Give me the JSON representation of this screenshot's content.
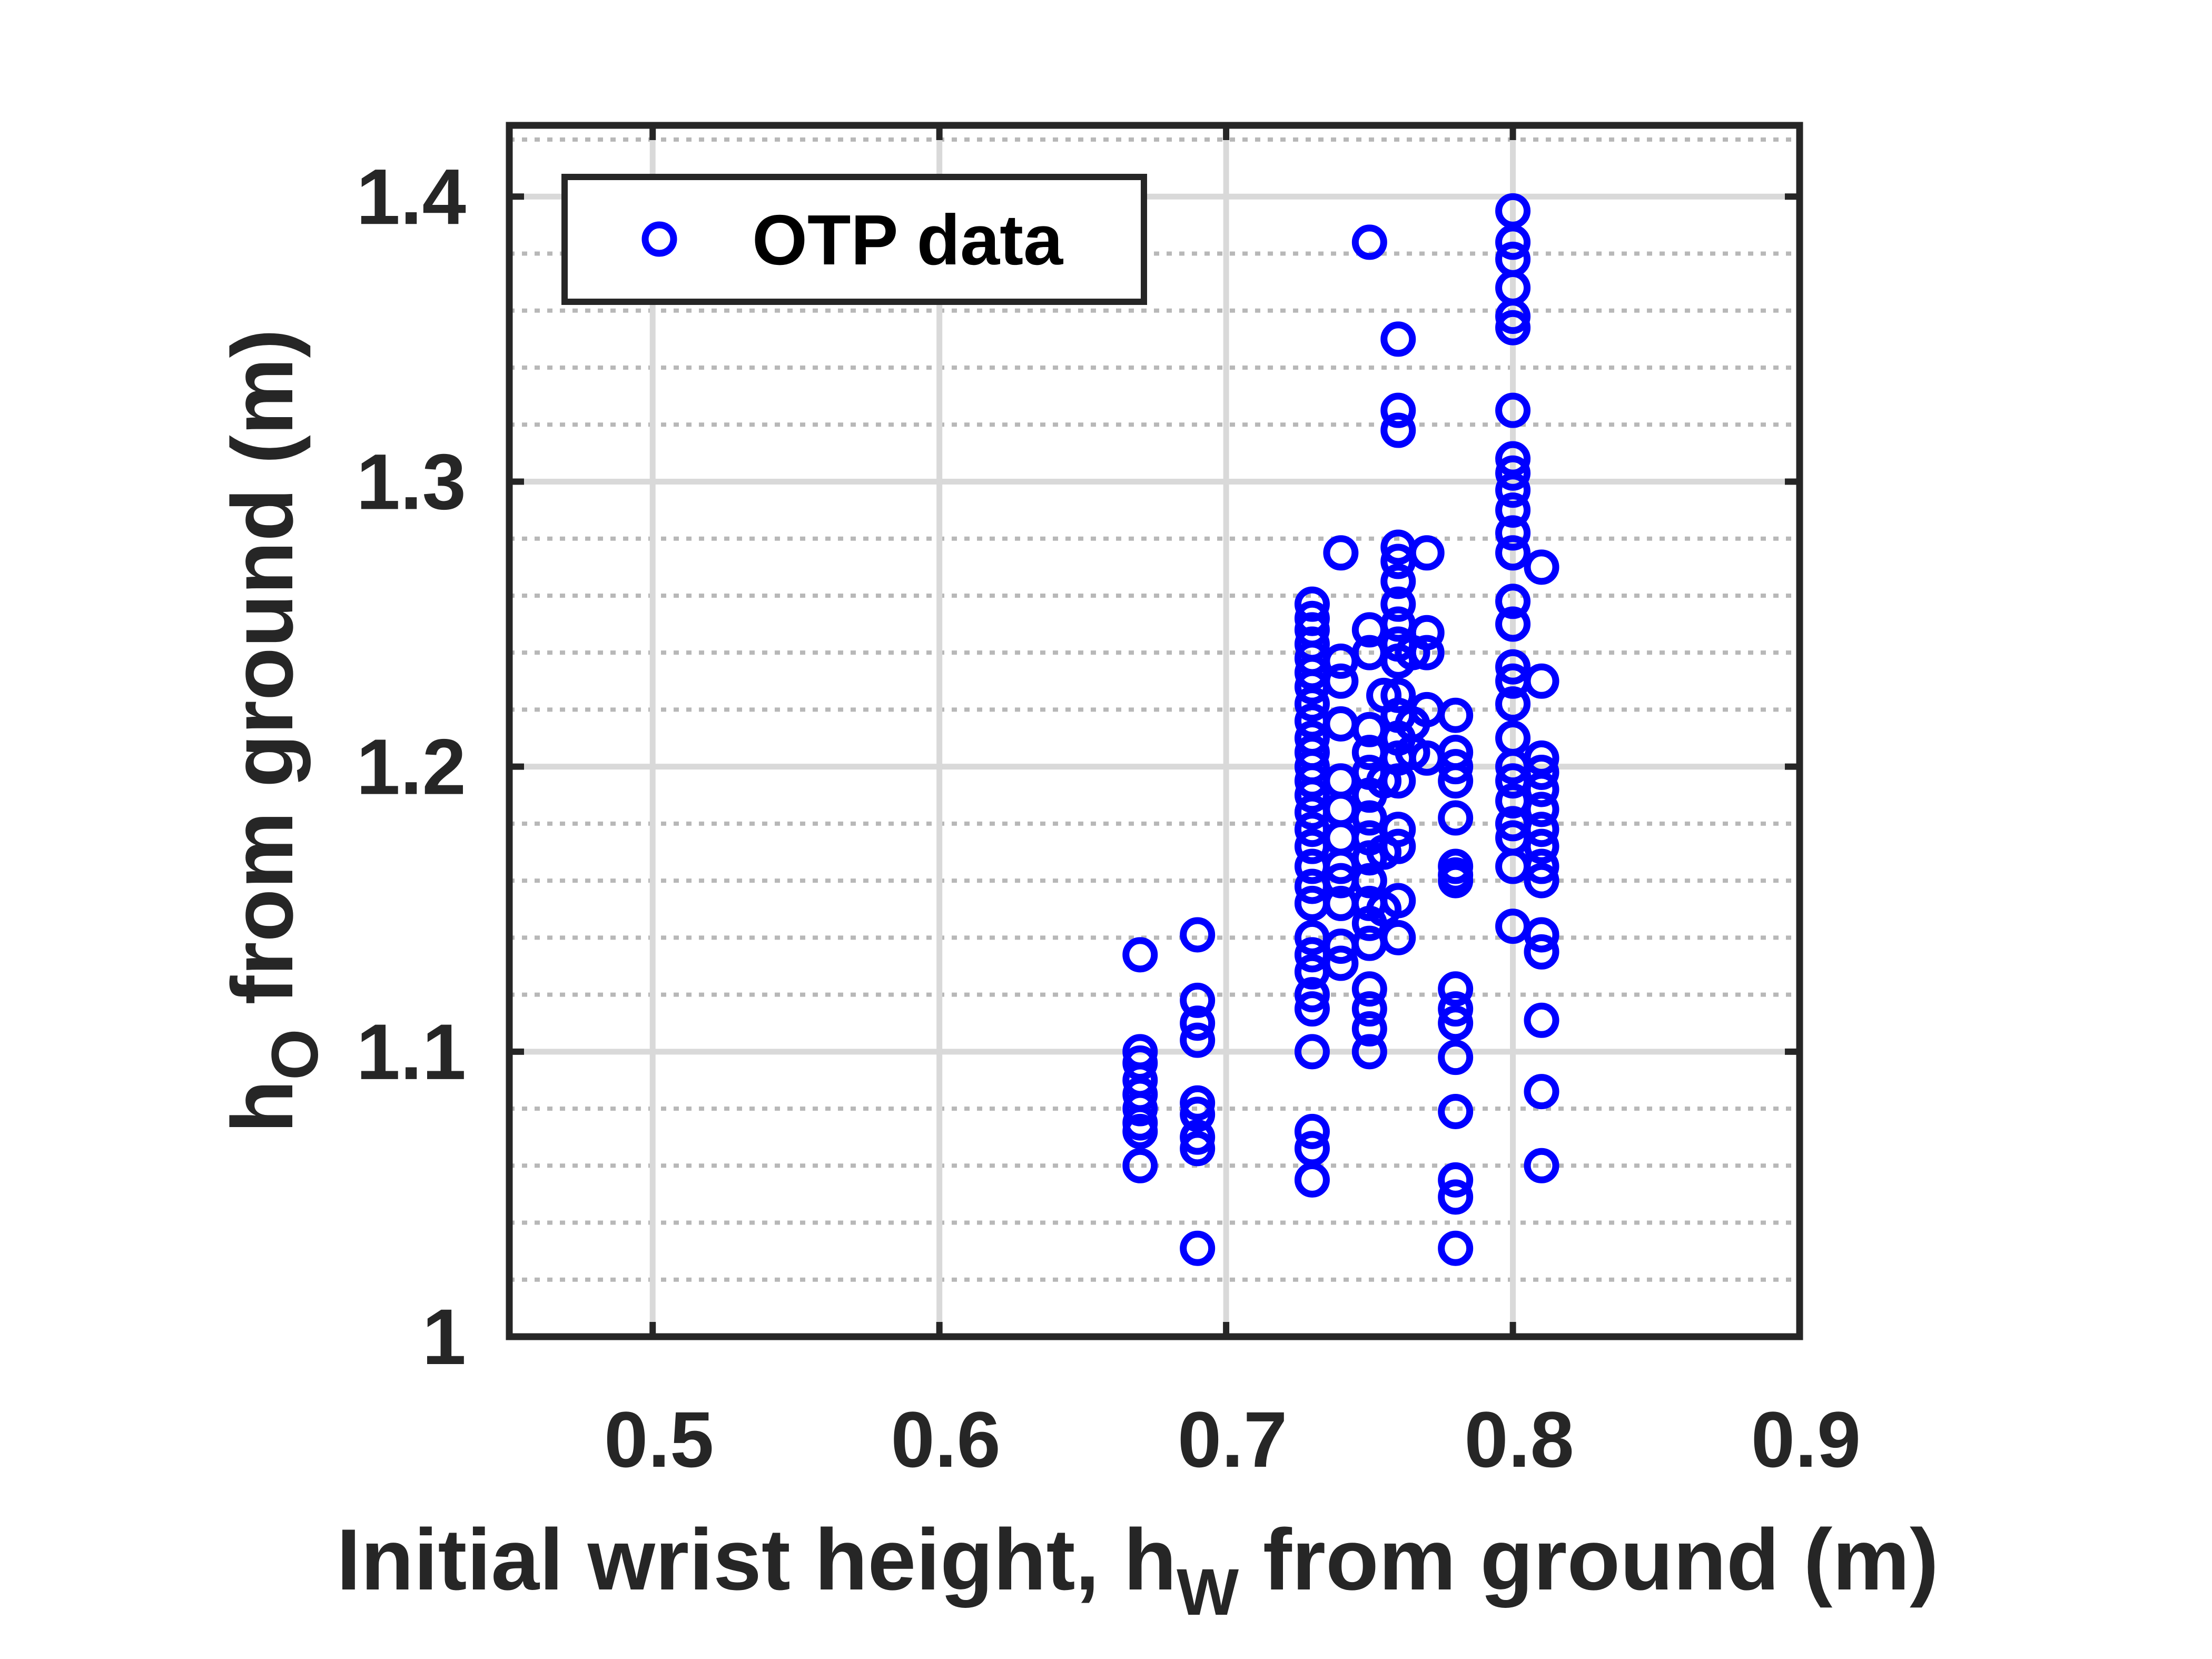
{
  "chart_data": {
    "type": "scatter",
    "xlabel": {
      "main": "Initial wrist height, h",
      "sub": "W",
      "rest": " from ground (m)"
    },
    "ylabel": {
      "main": "h",
      "sub": "O",
      "rest": " from ground (m)"
    },
    "xlim": [
      0.45,
      0.9
    ],
    "ylim": [
      1.0,
      1.425
    ],
    "xticks": [
      "0.5",
      "0.6",
      "0.7",
      "0.8",
      "0.9"
    ],
    "yticks": [
      "1",
      "1.1",
      "1.2",
      "1.3",
      "1.4"
    ],
    "major_grid": true,
    "minor_grid": true,
    "legend": {
      "position": "top-left",
      "entries": [
        "OTP data"
      ]
    },
    "marker_color": "#0000ff",
    "series": [
      {
        "name": "OTP data",
        "points": [
          [
            0.67,
            1.134
          ],
          [
            0.67,
            1.1
          ],
          [
            0.67,
            1.096
          ],
          [
            0.67,
            1.09
          ],
          [
            0.67,
            1.085
          ],
          [
            0.67,
            1.08
          ],
          [
            0.67,
            1.075
          ],
          [
            0.67,
            1.072
          ],
          [
            0.67,
            1.06
          ],
          [
            0.69,
            1.141
          ],
          [
            0.69,
            1.118
          ],
          [
            0.69,
            1.11
          ],
          [
            0.69,
            1.104
          ],
          [
            0.69,
            1.082
          ],
          [
            0.69,
            1.078
          ],
          [
            0.69,
            1.07
          ],
          [
            0.69,
            1.066
          ],
          [
            0.69,
            1.031
          ],
          [
            0.73,
            1.257
          ],
          [
            0.73,
            1.252
          ],
          [
            0.73,
            1.248
          ],
          [
            0.73,
            1.243
          ],
          [
            0.73,
            1.238
          ],
          [
            0.73,
            1.233
          ],
          [
            0.73,
            1.228
          ],
          [
            0.73,
            1.222
          ],
          [
            0.73,
            1.216
          ],
          [
            0.73,
            1.21
          ],
          [
            0.73,
            1.205
          ],
          [
            0.73,
            1.2
          ],
          [
            0.73,
            1.195
          ],
          [
            0.73,
            1.19
          ],
          [
            0.73,
            1.184
          ],
          [
            0.73,
            1.178
          ],
          [
            0.73,
            1.172
          ],
          [
            0.73,
            1.165
          ],
          [
            0.73,
            1.158
          ],
          [
            0.73,
            1.152
          ],
          [
            0.73,
            1.14
          ],
          [
            0.73,
            1.134
          ],
          [
            0.73,
            1.128
          ],
          [
            0.73,
            1.12
          ],
          [
            0.73,
            1.115
          ],
          [
            0.73,
            1.1
          ],
          [
            0.73,
            1.072
          ],
          [
            0.73,
            1.066
          ],
          [
            0.73,
            1.055
          ],
          [
            0.74,
            1.275
          ],
          [
            0.74,
            1.237
          ],
          [
            0.74,
            1.23
          ],
          [
            0.74,
            1.215
          ],
          [
            0.74,
            1.195
          ],
          [
            0.74,
            1.185
          ],
          [
            0.74,
            1.175
          ],
          [
            0.74,
            1.165
          ],
          [
            0.74,
            1.16
          ],
          [
            0.74,
            1.152
          ],
          [
            0.74,
            1.137
          ],
          [
            0.74,
            1.131
          ],
          [
            0.75,
            1.384
          ],
          [
            0.75,
            1.248
          ],
          [
            0.75,
            1.24
          ],
          [
            0.75,
            1.213
          ],
          [
            0.75,
            1.205
          ],
          [
            0.75,
            1.198
          ],
          [
            0.75,
            1.19
          ],
          [
            0.75,
            1.182
          ],
          [
            0.75,
            1.175
          ],
          [
            0.75,
            1.168
          ],
          [
            0.75,
            1.16
          ],
          [
            0.75,
            1.152
          ],
          [
            0.75,
            1.145
          ],
          [
            0.75,
            1.138
          ],
          [
            0.75,
            1.122
          ],
          [
            0.75,
            1.115
          ],
          [
            0.75,
            1.108
          ],
          [
            0.75,
            1.1
          ],
          [
            0.755,
            1.225
          ],
          [
            0.755,
            1.195
          ],
          [
            0.755,
            1.17
          ],
          [
            0.755,
            1.15
          ],
          [
            0.76,
            1.35
          ],
          [
            0.76,
            1.325
          ],
          [
            0.76,
            1.318
          ],
          [
            0.76,
            1.277
          ],
          [
            0.76,
            1.272
          ],
          [
            0.76,
            1.265
          ],
          [
            0.76,
            1.257
          ],
          [
            0.76,
            1.25
          ],
          [
            0.76,
            1.243
          ],
          [
            0.76,
            1.237
          ],
          [
            0.76,
            1.225
          ],
          [
            0.76,
            1.218
          ],
          [
            0.76,
            1.21
          ],
          [
            0.76,
            1.203
          ],
          [
            0.76,
            1.195
          ],
          [
            0.76,
            1.178
          ],
          [
            0.76,
            1.172
          ],
          [
            0.76,
            1.153
          ],
          [
            0.76,
            1.14
          ],
          [
            0.765,
            1.24
          ],
          [
            0.765,
            1.215
          ],
          [
            0.765,
            1.205
          ],
          [
            0.77,
            1.275
          ],
          [
            0.77,
            1.247
          ],
          [
            0.77,
            1.24
          ],
          [
            0.77,
            1.22
          ],
          [
            0.77,
            1.203
          ],
          [
            0.78,
            1.218
          ],
          [
            0.78,
            1.205
          ],
          [
            0.78,
            1.2
          ],
          [
            0.78,
            1.195
          ],
          [
            0.78,
            1.182
          ],
          [
            0.78,
            1.165
          ],
          [
            0.78,
            1.162
          ],
          [
            0.78,
            1.16
          ],
          [
            0.78,
            1.122
          ],
          [
            0.78,
            1.115
          ],
          [
            0.78,
            1.11
          ],
          [
            0.78,
            1.098
          ],
          [
            0.78,
            1.079
          ],
          [
            0.78,
            1.055
          ],
          [
            0.78,
            1.049
          ],
          [
            0.78,
            1.031
          ],
          [
            0.8,
            1.395
          ],
          [
            0.8,
            1.384
          ],
          [
            0.8,
            1.378
          ],
          [
            0.8,
            1.368
          ],
          [
            0.8,
            1.358
          ],
          [
            0.8,
            1.354
          ],
          [
            0.8,
            1.325
          ],
          [
            0.8,
            1.308
          ],
          [
            0.8,
            1.303
          ],
          [
            0.8,
            1.297
          ],
          [
            0.8,
            1.29
          ],
          [
            0.8,
            1.282
          ],
          [
            0.8,
            1.275
          ],
          [
            0.8,
            1.258
          ],
          [
            0.8,
            1.25
          ],
          [
            0.8,
            1.235
          ],
          [
            0.8,
            1.23
          ],
          [
            0.8,
            1.222
          ],
          [
            0.8,
            1.21
          ],
          [
            0.8,
            1.2
          ],
          [
            0.8,
            1.195
          ],
          [
            0.8,
            1.188
          ],
          [
            0.8,
            1.18
          ],
          [
            0.8,
            1.175
          ],
          [
            0.8,
            1.165
          ],
          [
            0.8,
            1.144
          ],
          [
            0.81,
            1.27
          ],
          [
            0.81,
            1.23
          ],
          [
            0.81,
            1.203
          ],
          [
            0.81,
            1.198
          ],
          [
            0.81,
            1.192
          ],
          [
            0.81,
            1.185
          ],
          [
            0.81,
            1.178
          ],
          [
            0.81,
            1.172
          ],
          [
            0.81,
            1.165
          ],
          [
            0.81,
            1.16
          ],
          [
            0.81,
            1.141
          ],
          [
            0.81,
            1.135
          ],
          [
            0.81,
            1.111
          ],
          [
            0.81,
            1.086
          ],
          [
            0.81,
            1.06
          ]
        ]
      }
    ]
  }
}
